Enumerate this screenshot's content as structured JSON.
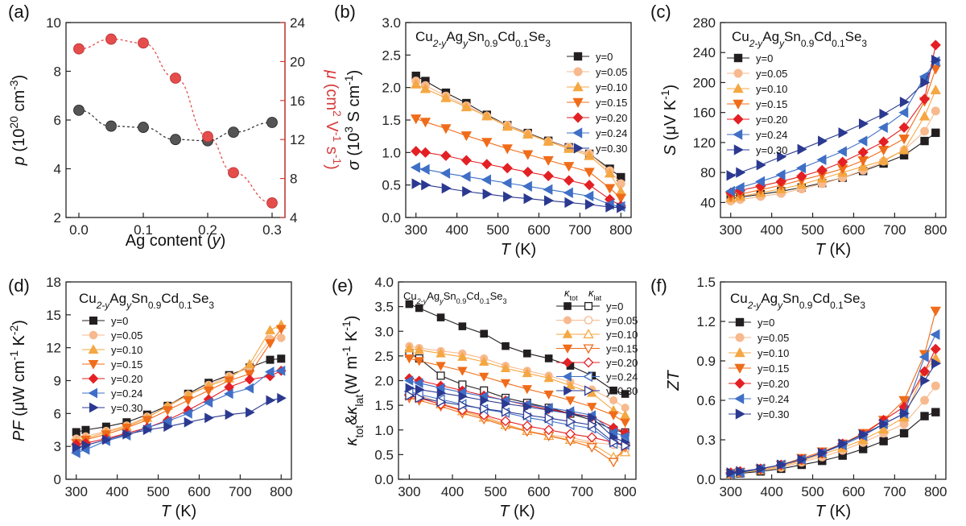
{
  "colors": {
    "y0": "#231f20",
    "y005": "#f7b98d",
    "y010": "#f4a742",
    "y015": "#ef6c1a",
    "y020": "#e32024",
    "y024": "#3f6fc6",
    "y030": "#2b3990",
    "p_color": "#444444",
    "mu_color": "#e54c4c",
    "mu_axis": "#d63c3c"
  },
  "chart_data": [
    {
      "panel": "(a)",
      "type": "scatter",
      "xlabel": "Ag content (y)",
      "ylabel": "p (10^20 cm^-3)",
      "y2label": "μ (cm^2 V^-1 s^-1)",
      "xlim": [
        -0.02,
        0.32
      ],
      "ylim": [
        2,
        10
      ],
      "y2lim": [
        4,
        24
      ],
      "xticks": [
        "0.0",
        "0.1",
        "0.2",
        "0.3"
      ],
      "yticks": [
        "2",
        "4",
        "6",
        "8",
        "10"
      ],
      "y2ticks": [
        "4",
        "8",
        "12",
        "16",
        "20",
        "24"
      ],
      "series": [
        {
          "name": "p",
          "axis": "left",
          "x": [
            0,
            0.05,
            0.1,
            0.15,
            0.2,
            0.24,
            0.3
          ],
          "values": [
            6.4,
            5.75,
            5.7,
            5.2,
            5.15,
            5.5,
            5.9
          ]
        },
        {
          "name": "μ",
          "axis": "right",
          "x": [
            0,
            0.05,
            0.1,
            0.15,
            0.2,
            0.24,
            0.3
          ],
          "values": [
            21.3,
            22.3,
            21.9,
            18.3,
            12.3,
            8.6,
            5.5
          ]
        }
      ]
    },
    {
      "panel": "(b)",
      "type": "line",
      "title": [
        "Cu",
        "2-y",
        "Ag",
        "y",
        "Sn",
        "0.9",
        "Cd",
        "0.1",
        "Se",
        "3"
      ],
      "xlabel": "T (K)",
      "ylabel": "σ (10^3 S cm^-1)",
      "xlim": [
        275,
        825
      ],
      "ylim": [
        0,
        3
      ],
      "xticks": [
        "300",
        "400",
        "500",
        "600",
        "700",
        "800"
      ],
      "yticks": [
        "0.0",
        "0.5",
        "1.0",
        "1.5",
        "2.0",
        "2.5",
        "3.0"
      ],
      "x": [
        300,
        323,
        373,
        423,
        473,
        523,
        573,
        623,
        673,
        723,
        773,
        800
      ],
      "series": [
        {
          "name": "y=0",
          "values": [
            2.18,
            2.1,
            1.92,
            1.76,
            1.58,
            1.42,
            1.3,
            1.18,
            1.08,
            0.98,
            0.75,
            0.62
          ]
        },
        {
          "name": "y=0.05",
          "values": [
            2.1,
            2.03,
            1.87,
            1.72,
            1.56,
            1.42,
            1.29,
            1.17,
            1.08,
            0.98,
            0.72,
            0.52
          ]
        },
        {
          "name": "y=0.10",
          "values": [
            2.05,
            1.98,
            1.84,
            1.7,
            1.56,
            1.4,
            1.28,
            1.17,
            1.06,
            0.95,
            0.68,
            0.4
          ]
        },
        {
          "name": "y=0.15",
          "values": [
            1.52,
            1.47,
            1.37,
            1.26,
            1.16,
            1.06,
            0.97,
            0.88,
            0.79,
            0.7,
            0.45,
            0.3
          ]
        },
        {
          "name": "y=0.20",
          "values": [
            1.02,
            1.0,
            0.95,
            0.88,
            0.82,
            0.76,
            0.7,
            0.64,
            0.57,
            0.5,
            0.28,
            0.18
          ]
        },
        {
          "name": "y=0.24",
          "values": [
            0.77,
            0.74,
            0.68,
            0.63,
            0.58,
            0.53,
            0.48,
            0.43,
            0.38,
            0.33,
            0.2,
            0.17
          ]
        },
        {
          "name": "y=0.30",
          "values": [
            0.52,
            0.5,
            0.45,
            0.4,
            0.36,
            0.32,
            0.29,
            0.26,
            0.23,
            0.2,
            0.16,
            0.15
          ]
        }
      ]
    },
    {
      "panel": "(c)",
      "type": "line",
      "title": [
        "Cu",
        "2-y",
        "Ag",
        "y",
        "Sn",
        "0.9",
        "Cd",
        "0.1",
        "Se",
        "3"
      ],
      "xlabel": "T (K)",
      "ylabel": "S (μV K^-1)",
      "xlim": [
        275,
        825
      ],
      "ylim": [
        20,
        280
      ],
      "xticks": [
        "300",
        "400",
        "500",
        "600",
        "700",
        "800"
      ],
      "yticks": [
        "40",
        "80",
        "120",
        "160",
        "200",
        "240",
        "280"
      ],
      "x": [
        300,
        323,
        373,
        423,
        473,
        523,
        573,
        623,
        673,
        723,
        773,
        800
      ],
      "series": [
        {
          "name": "y=0",
          "values": [
            45,
            47,
            51,
            55,
            60,
            66,
            73,
            82,
            92,
            103,
            122,
            133
          ]
        },
        {
          "name": "y=0.05",
          "values": [
            42,
            44,
            48,
            52,
            58,
            65,
            73,
            83,
            95,
            110,
            135,
            162
          ]
        },
        {
          "name": "y=0.10",
          "values": [
            46,
            48,
            53,
            58,
            64,
            72,
            80,
            88,
            96,
            110,
            155,
            190
          ]
        },
        {
          "name": "y=0.15",
          "values": [
            48,
            51,
            57,
            63,
            70,
            77,
            85,
            96,
            110,
            125,
            175,
            218
          ]
        },
        {
          "name": "y=0.20",
          "values": [
            53,
            56,
            62,
            68,
            75,
            83,
            94,
            107,
            121,
            140,
            178,
            250
          ]
        },
        {
          "name": "y=0.24",
          "values": [
            55,
            60,
            68,
            77,
            86,
            97,
            108,
            122,
            140,
            160,
            208,
            228
          ]
        },
        {
          "name": "y=0.30",
          "values": [
            76,
            80,
            90,
            101,
            111,
            122,
            133,
            145,
            158,
            174,
            200,
            230
          ]
        }
      ]
    },
    {
      "panel": "(d)",
      "type": "line",
      "title": [
        "Cu",
        "2-y",
        "Ag",
        "y",
        "Sn",
        "0.9",
        "Cd",
        "0.1",
        "Se",
        "3"
      ],
      "xlabel": "T (K)",
      "ylabel": "PF (μW cm^-1 K^-2)",
      "xlim": [
        275,
        825
      ],
      "ylim": [
        0,
        18
      ],
      "xticks": [
        "300",
        "400",
        "500",
        "600",
        "700",
        "800"
      ],
      "yticks": [
        "0",
        "3",
        "6",
        "9",
        "12",
        "15",
        "18"
      ],
      "x": [
        300,
        323,
        373,
        423,
        473,
        523,
        573,
        623,
        673,
        723,
        773,
        800
      ],
      "series": [
        {
          "name": "y=0",
          "values": [
            4.3,
            4.5,
            4.8,
            5.2,
            5.9,
            6.7,
            7.8,
            8.8,
            9.5,
            10.2,
            10.9,
            11.0
          ]
        },
        {
          "name": "y=0.05",
          "values": [
            3.7,
            3.9,
            4.4,
            4.9,
            5.7,
            6.6,
            7.7,
            8.6,
            9.4,
            10.2,
            12.8,
            12.9
          ]
        },
        {
          "name": "y=0.10",
          "values": [
            3.4,
            3.7,
            4.3,
            4.8,
            5.6,
            6.7,
            7.7,
            8.5,
            9.2,
            10.5,
            13.6,
            14.1
          ]
        },
        {
          "name": "y=0.15",
          "values": [
            3.3,
            3.6,
            4.1,
            4.7,
            5.4,
            6.3,
            7.2,
            8.1,
            9.0,
            9.6,
            12.4,
            13.7
          ]
        },
        {
          "name": "y=0.20",
          "values": [
            3.2,
            3.3,
            3.7,
            4.2,
            4.7,
            5.4,
            6.3,
            7.3,
            8.4,
            9.1,
            9.4,
            9.9
          ]
        },
        {
          "name": "y=0.24",
          "values": [
            2.4,
            2.7,
            3.5,
            4.0,
            4.7,
            5.3,
            6.0,
            7.0,
            7.8,
            8.3,
            9.8,
            9.9
          ]
        },
        {
          "name": "y=0.30",
          "values": [
            2.9,
            3.1,
            3.6,
            4.1,
            4.5,
            4.8,
            5.2,
            5.6,
            5.9,
            6.1,
            7.2,
            7.4
          ]
        }
      ]
    },
    {
      "panel": "(e)",
      "type": "line",
      "title": [
        "Cu",
        "2-y",
        "Ag",
        "y",
        "Sn",
        "0.9",
        "Cd",
        "0.1",
        "Se",
        "3"
      ],
      "legend_headers": [
        "κtot",
        "κlat"
      ],
      "xlabel": "T (K)",
      "ylabel": "κtot & κlat (W m^-1 K^-1)",
      "xlim": [
        275,
        825
      ],
      "ylim": [
        0,
        4
      ],
      "xticks": [
        "300",
        "400",
        "500",
        "600",
        "700",
        "800"
      ],
      "yticks": [
        "0.0",
        "0.5",
        "1.0",
        "1.5",
        "2.0",
        "2.5",
        "3.0",
        "3.5",
        "4.0"
      ],
      "x": [
        300,
        323,
        373,
        423,
        473,
        523,
        573,
        623,
        673,
        723,
        773,
        800
      ],
      "series": [
        {
          "name": "y=0",
          "tot": [
            3.55,
            3.47,
            3.28,
            3.1,
            2.95,
            2.7,
            2.55,
            2.45,
            2.3,
            2.1,
            1.8,
            1.73
          ],
          "lat": [
            2.55,
            2.45,
            2.1,
            1.92,
            1.8,
            1.65,
            1.55,
            1.45,
            1.33,
            1.2,
            1.0,
            0.95
          ]
        },
        {
          "name": "y=0.05",
          "tot": [
            2.7,
            2.66,
            2.6,
            2.55,
            2.45,
            2.3,
            2.2,
            2.1,
            1.97,
            1.82,
            1.6,
            1.45
          ],
          "lat": [
            1.75,
            1.7,
            1.55,
            1.4,
            1.28,
            1.12,
            0.98,
            0.9,
            0.85,
            0.75,
            0.7,
            0.6
          ]
        },
        {
          "name": "y=0.10",
          "tot": [
            2.65,
            2.62,
            2.55,
            2.48,
            2.38,
            2.25,
            2.15,
            2.05,
            1.9,
            1.75,
            1.4,
            1.3
          ],
          "lat": [
            1.7,
            1.65,
            1.52,
            1.38,
            1.25,
            1.1,
            0.98,
            0.88,
            0.8,
            0.72,
            0.45,
            0.55
          ]
        },
        {
          "name": "y=0.15",
          "tot": [
            2.45,
            2.4,
            2.3,
            2.2,
            2.08,
            1.95,
            1.83,
            1.72,
            1.6,
            1.47,
            1.3,
            1.15
          ],
          "lat": [
            1.65,
            1.6,
            1.48,
            1.34,
            1.22,
            1.08,
            0.97,
            0.88,
            0.78,
            0.65,
            0.35,
            0.65
          ]
        },
        {
          "name": "y=0.20",
          "tot": [
            2.05,
            2.0,
            1.9,
            1.8,
            1.7,
            1.6,
            1.5,
            1.42,
            1.34,
            1.26,
            1.05,
            0.95
          ],
          "lat": [
            1.7,
            1.65,
            1.52,
            1.4,
            1.3,
            1.18,
            1.08,
            1.0,
            0.92,
            0.85,
            0.75,
            0.7
          ]
        },
        {
          "name": "y=0.24",
          "tot": [
            2.0,
            1.95,
            1.85,
            1.76,
            1.68,
            1.6,
            1.52,
            1.45,
            1.38,
            1.3,
            0.95,
            0.87
          ],
          "lat": [
            1.78,
            1.72,
            1.62,
            1.52,
            1.42,
            1.35,
            1.25,
            1.18,
            1.1,
            1.03,
            0.72,
            0.7
          ]
        },
        {
          "name": "y=0.30",
          "tot": [
            1.85,
            1.82,
            1.75,
            1.68,
            1.6,
            1.53,
            1.47,
            1.4,
            1.33,
            1.25,
            0.85,
            0.75
          ],
          "lat": [
            1.7,
            1.65,
            1.57,
            1.5,
            1.43,
            1.37,
            1.3,
            1.24,
            1.17,
            1.1,
            0.75,
            0.68
          ]
        }
      ]
    },
    {
      "panel": "(f)",
      "type": "line",
      "title": [
        "Cu",
        "2-y",
        "Ag",
        "y",
        "Sn",
        "0.9",
        "Cd",
        "0.1",
        "Se",
        "3"
      ],
      "xlabel": "T (K)",
      "ylabel": "ZT",
      "xlim": [
        275,
        825
      ],
      "ylim": [
        0,
        1.5
      ],
      "xticks": [
        "300",
        "400",
        "500",
        "600",
        "700",
        "800"
      ],
      "yticks": [
        "0.0",
        "0.3",
        "0.6",
        "0.9",
        "1.2",
        "1.5"
      ],
      "x": [
        300,
        323,
        373,
        423,
        473,
        523,
        573,
        623,
        673,
        723,
        773,
        800
      ],
      "series": [
        {
          "name": "y=0",
          "values": [
            0.04,
            0.045,
            0.06,
            0.08,
            0.11,
            0.14,
            0.18,
            0.23,
            0.29,
            0.35,
            0.48,
            0.51
          ]
        },
        {
          "name": "y=0.05",
          "values": [
            0.04,
            0.05,
            0.07,
            0.09,
            0.13,
            0.17,
            0.22,
            0.28,
            0.35,
            0.42,
            0.6,
            0.71
          ]
        },
        {
          "name": "y=0.10",
          "values": [
            0.04,
            0.05,
            0.07,
            0.1,
            0.14,
            0.19,
            0.24,
            0.3,
            0.38,
            0.47,
            0.82,
            0.92
          ]
        },
        {
          "name": "y=0.15",
          "values": [
            0.045,
            0.055,
            0.08,
            0.11,
            0.16,
            0.21,
            0.27,
            0.35,
            0.45,
            0.6,
            0.95,
            1.28
          ]
        },
        {
          "name": "y=0.20",
          "values": [
            0.05,
            0.06,
            0.08,
            0.11,
            0.15,
            0.2,
            0.27,
            0.34,
            0.45,
            0.55,
            0.82,
            0.99
          ]
        },
        {
          "name": "y=0.24",
          "values": [
            0.04,
            0.05,
            0.08,
            0.11,
            0.15,
            0.2,
            0.26,
            0.33,
            0.42,
            0.5,
            0.93,
            1.1
          ]
        },
        {
          "name": "y=0.30",
          "values": [
            0.05,
            0.06,
            0.08,
            0.11,
            0.15,
            0.2,
            0.27,
            0.34,
            0.42,
            0.5,
            0.75,
            0.88
          ]
        }
      ]
    }
  ]
}
